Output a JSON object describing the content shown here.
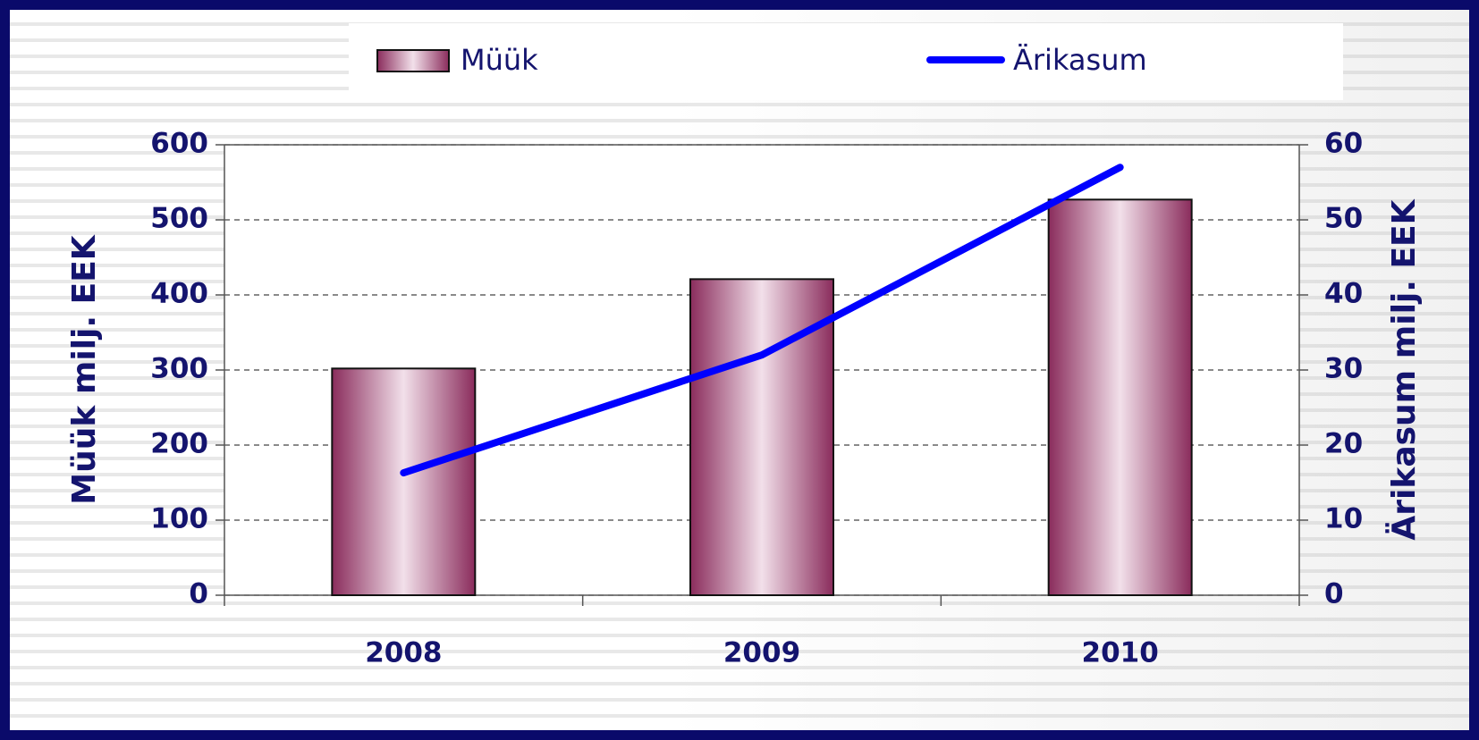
{
  "chart_data": {
    "type": "bar",
    "categories": [
      "2008",
      "2009",
      "2010"
    ],
    "series": [
      {
        "name": "Müük",
        "type": "bar",
        "color": "#993366",
        "values": [
          302,
          421,
          527
        ]
      },
      {
        "name": "Ärikasum",
        "type": "line",
        "axis": "y2",
        "color": "#0000ff",
        "values": [
          16.3,
          32,
          57
        ]
      }
    ],
    "ylabel": "Müük milj. EEK",
    "y2label": "Ärikasum milj. EEK",
    "ylim": [
      0,
      600
    ],
    "yticks": [
      0,
      100,
      200,
      300,
      400,
      500,
      600
    ],
    "y2lim": [
      0,
      60
    ],
    "y2ticks": [
      0,
      10,
      20,
      30,
      40,
      50,
      60
    ],
    "grid": true,
    "legend": "top"
  }
}
